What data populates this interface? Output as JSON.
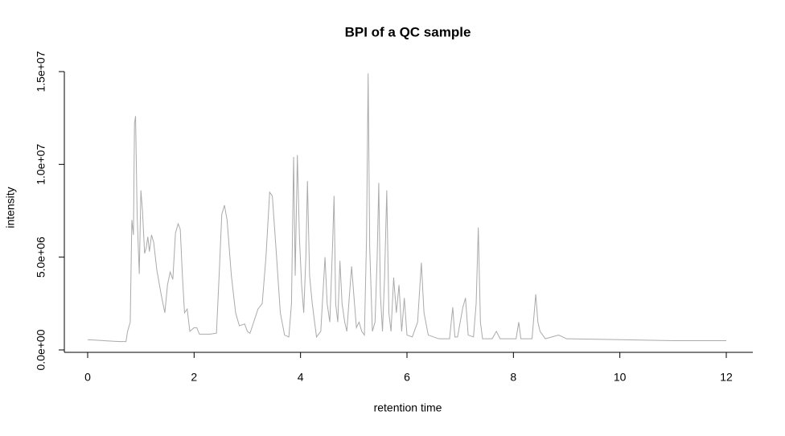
{
  "chart_data": {
    "type": "line",
    "title": "BPI of a QC sample",
    "x_label": "retention time",
    "y_label": "intensity",
    "xlim": [
      0,
      12
    ],
    "xticks": [
      0,
      2,
      4,
      6,
      8,
      10,
      12
    ],
    "ylim": [
      0,
      15000000
    ],
    "yticks": [
      {
        "value": 0,
        "label": "0.0e+00"
      },
      {
        "value": 5000000,
        "label": "5.0e+06"
      },
      {
        "value": 10000000,
        "label": "1.0e+07"
      },
      {
        "value": 15000000,
        "label": "1.5e+07"
      }
    ],
    "color": "#aaaaaa",
    "x": [
      0.0,
      0.3,
      0.6,
      0.72,
      0.75,
      0.8,
      0.83,
      0.86,
      0.88,
      0.9,
      0.93,
      0.97,
      1.0,
      1.03,
      1.07,
      1.1,
      1.13,
      1.16,
      1.2,
      1.24,
      1.3,
      1.38,
      1.45,
      1.5,
      1.55,
      1.6,
      1.65,
      1.7,
      1.74,
      1.78,
      1.82,
      1.87,
      1.92,
      2.0,
      2.05,
      2.1,
      2.3,
      2.42,
      2.47,
      2.52,
      2.57,
      2.62,
      2.7,
      2.78,
      2.85,
      2.95,
      3.0,
      3.05,
      3.12,
      3.2,
      3.28,
      3.35,
      3.42,
      3.47,
      3.55,
      3.62,
      3.7,
      3.78,
      3.83,
      3.87,
      3.9,
      3.94,
      3.98,
      4.02,
      4.06,
      4.1,
      4.13,
      4.17,
      4.22,
      4.3,
      4.38,
      4.42,
      4.46,
      4.5,
      4.55,
      4.6,
      4.63,
      4.66,
      4.7,
      4.74,
      4.78,
      4.83,
      4.87,
      4.92,
      4.96,
      5.0,
      5.05,
      5.1,
      5.15,
      5.2,
      5.24,
      5.27,
      5.3,
      5.35,
      5.4,
      5.44,
      5.47,
      5.5,
      5.54,
      5.58,
      5.62,
      5.66,
      5.7,
      5.75,
      5.8,
      5.85,
      5.9,
      5.95,
      6.0,
      6.1,
      6.2,
      6.27,
      6.32,
      6.4,
      6.6,
      6.8,
      6.86,
      6.9,
      6.95,
      7.05,
      7.1,
      7.15,
      7.25,
      7.3,
      7.34,
      7.38,
      7.42,
      7.6,
      7.68,
      7.75,
      8.05,
      8.1,
      8.14,
      8.35,
      8.42,
      8.46,
      8.5,
      8.6,
      8.85,
      9.0,
      10.0,
      11.0,
      12.0
    ],
    "values": [
      550000,
      500000,
      450000,
      450000,
      1000000,
      1500000,
      7000000,
      6200000,
      12200000,
      12600000,
      7200000,
      4100000,
      8600000,
      7500000,
      5200000,
      5500000,
      6100000,
      5300000,
      6200000,
      5800000,
      4300000,
      3000000,
      2000000,
      3500000,
      4200000,
      3800000,
      6300000,
      6800000,
      6500000,
      4000000,
      2000000,
      2200000,
      1000000,
      1200000,
      1200000,
      850000,
      850000,
      900000,
      4000000,
      7300000,
      7800000,
      7000000,
      4000000,
      2000000,
      1300000,
      1400000,
      1000000,
      900000,
      1500000,
      2200000,
      2500000,
      5000000,
      8500000,
      8300000,
      5000000,
      2000000,
      800000,
      700000,
      2500000,
      10400000,
      4000000,
      10500000,
      6000000,
      3500000,
      2000000,
      5000000,
      9100000,
      4000000,
      2500000,
      700000,
      1000000,
      3000000,
      5000000,
      2500000,
      1500000,
      5500000,
      8300000,
      2500000,
      1500000,
      4800000,
      2500000,
      1500000,
      1000000,
      3000000,
      4500000,
      3000000,
      1200000,
      1500000,
      1000000,
      800000,
      6000000,
      14900000,
      5500000,
      1000000,
      1500000,
      5000000,
      9000000,
      3000000,
      1000000,
      4000000,
      8600000,
      2000000,
      1000000,
      3900000,
      2000000,
      3500000,
      1000000,
      2800000,
      800000,
      700000,
      1500000,
      4700000,
      2000000,
      800000,
      600000,
      600000,
      2300000,
      700000,
      700000,
      2300000,
      2800000,
      800000,
      700000,
      2500000,
      6600000,
      1500000,
      600000,
      600000,
      1000000,
      600000,
      600000,
      1500000,
      600000,
      600000,
      3000000,
      1500000,
      1000000,
      600000,
      800000,
      600000,
      550000,
      500000,
      500000
    ]
  }
}
